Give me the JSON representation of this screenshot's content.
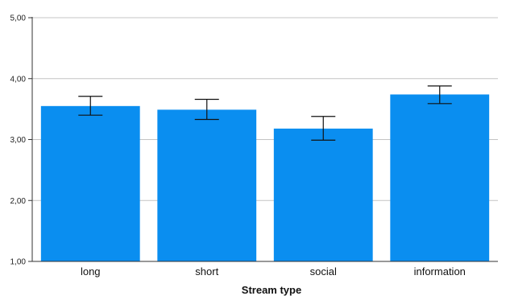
{
  "chart_data": {
    "type": "bar",
    "categories": [
      "long",
      "short",
      "social",
      "information"
    ],
    "values": [
      3.55,
      3.49,
      3.18,
      3.74
    ],
    "error_bars": {
      "lower": [
        3.4,
        3.33,
        2.99,
        3.59
      ],
      "upper": [
        3.71,
        3.66,
        3.38,
        3.88
      ]
    },
    "xlabel": "Stream type",
    "ylabel": "",
    "ylim": [
      1.0,
      5.0
    ],
    "yticks": [
      "1,00",
      "2,00",
      "3,00",
      "4,00",
      "5,00"
    ],
    "grid": "horizontal",
    "bar_color": "#0a8ef0"
  }
}
